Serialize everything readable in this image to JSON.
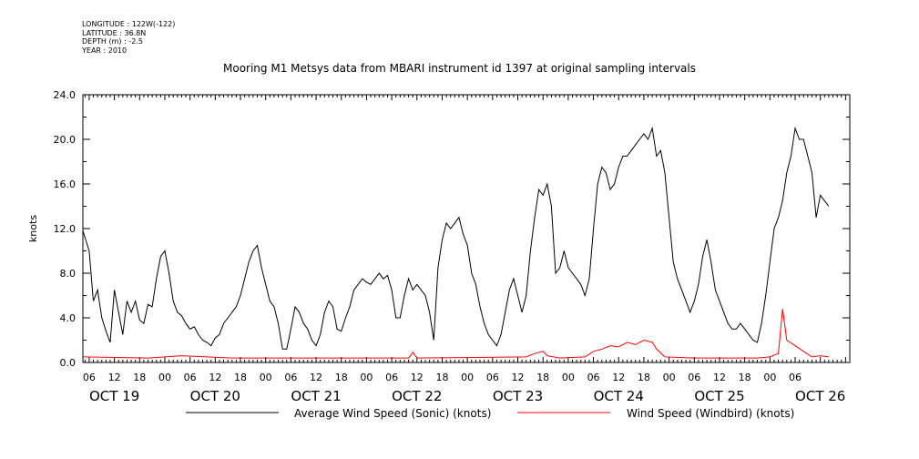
{
  "meta": {
    "longitude": "LONGITUDE : 122W(-122)",
    "latitude": "LATITUDE : 36.8N",
    "depth": "DEPTH (m) : -2.5",
    "year": "YEAR : 2010"
  },
  "chart_data": {
    "type": "line",
    "title": "Mooring M1 Metsys data from MBARI instrument id 1397 at original sampling intervals",
    "ylabel": "knots",
    "ylim": [
      0,
      24
    ],
    "xlim_hours": [
      4.5,
      187
    ],
    "y_ticks": [
      "0.0",
      "4.0",
      "8.0",
      "12.0",
      "16.0",
      "20.0",
      "24.0"
    ],
    "hour_ticks": [
      "06",
      "12",
      "18",
      "00",
      "06",
      "12",
      "18",
      "00",
      "06",
      "12",
      "18",
      "00",
      "06",
      "12",
      "18",
      "00",
      "06",
      "12",
      "18",
      "00",
      "06",
      "12",
      "18",
      "00",
      "06",
      "12",
      "18",
      "00",
      "06"
    ],
    "date_labels": [
      "OCT 19",
      "OCT 20",
      "OCT 21",
      "OCT 22",
      "OCT 23",
      "OCT 24",
      "OCT 25",
      "OCT 26"
    ],
    "grid": false,
    "legend_position": "bottom",
    "series": [
      {
        "name": "Average Wind Speed (Sonic) (knots)",
        "color": "#000000",
        "points": [
          [
            4.5,
            11.8
          ],
          [
            6,
            10.0
          ],
          [
            7,
            5.5
          ],
          [
            8,
            6.5
          ],
          [
            9,
            4.0
          ],
          [
            10,
            2.8
          ],
          [
            11,
            1.8
          ],
          [
            12,
            6.5
          ],
          [
            13,
            4.5
          ],
          [
            14,
            2.5
          ],
          [
            15,
            5.5
          ],
          [
            16,
            4.5
          ],
          [
            17,
            5.5
          ],
          [
            18,
            3.8
          ],
          [
            19,
            3.5
          ],
          [
            20,
            5.2
          ],
          [
            21,
            5.0
          ],
          [
            22,
            7.5
          ],
          [
            23,
            9.5
          ],
          [
            24,
            10.0
          ],
          [
            25,
            8.0
          ],
          [
            26,
            5.5
          ],
          [
            27,
            4.5
          ],
          [
            28,
            4.2
          ],
          [
            29,
            3.5
          ],
          [
            30,
            3.0
          ],
          [
            31,
            3.2
          ],
          [
            32,
            2.5
          ],
          [
            33,
            2.0
          ],
          [
            34,
            1.8
          ],
          [
            35,
            1.5
          ],
          [
            36,
            2.2
          ],
          [
            37,
            2.5
          ],
          [
            38,
            3.5
          ],
          [
            39,
            4.0
          ],
          [
            40,
            4.5
          ],
          [
            41,
            5.0
          ],
          [
            42,
            6.0
          ],
          [
            43,
            7.5
          ],
          [
            44,
            9.0
          ],
          [
            45,
            10.0
          ],
          [
            46,
            10.5
          ],
          [
            47,
            8.5
          ],
          [
            48,
            7.0
          ],
          [
            49,
            5.5
          ],
          [
            50,
            5.0
          ],
          [
            51,
            3.5
          ],
          [
            52,
            1.2
          ],
          [
            53,
            1.2
          ],
          [
            54,
            3.0
          ],
          [
            55,
            5.0
          ],
          [
            56,
            4.5
          ],
          [
            57,
            3.5
          ],
          [
            58,
            3.0
          ],
          [
            59,
            2.0
          ],
          [
            60,
            1.5
          ],
          [
            61,
            2.5
          ],
          [
            62,
            4.5
          ],
          [
            63,
            5.5
          ],
          [
            64,
            5.0
          ],
          [
            65,
            3.0
          ],
          [
            66,
            2.8
          ],
          [
            67,
            4.0
          ],
          [
            68,
            5.0
          ],
          [
            69,
            6.5
          ],
          [
            70,
            7.0
          ],
          [
            71,
            7.5
          ],
          [
            72,
            7.2
          ],
          [
            73,
            7.0
          ],
          [
            74,
            7.5
          ],
          [
            75,
            8.0
          ],
          [
            76,
            7.5
          ],
          [
            77,
            7.8
          ],
          [
            78,
            6.5
          ],
          [
            79,
            4.0
          ],
          [
            80,
            4.0
          ],
          [
            81,
            6.0
          ],
          [
            82,
            7.5
          ],
          [
            83,
            6.5
          ],
          [
            84,
            7.0
          ],
          [
            85,
            6.5
          ],
          [
            86,
            6.0
          ],
          [
            87,
            4.5
          ],
          [
            88,
            2.0
          ],
          [
            89,
            8.5
          ],
          [
            90,
            11.0
          ],
          [
            91,
            12.5
          ],
          [
            92,
            12.0
          ],
          [
            93,
            12.5
          ],
          [
            94,
            13.0
          ],
          [
            95,
            11.5
          ],
          [
            96,
            10.5
          ],
          [
            97,
            8.0
          ],
          [
            98,
            7.0
          ],
          [
            99,
            5.0
          ],
          [
            100,
            3.5
          ],
          [
            101,
            2.5
          ],
          [
            102,
            2.0
          ],
          [
            103,
            1.5
          ],
          [
            104,
            2.5
          ],
          [
            105,
            4.5
          ],
          [
            106,
            6.5
          ],
          [
            107,
            7.5
          ],
          [
            108,
            6.0
          ],
          [
            109,
            4.5
          ],
          [
            110,
            6.0
          ],
          [
            111,
            10.0
          ],
          [
            112,
            13.0
          ],
          [
            113,
            15.5
          ],
          [
            114,
            15.0
          ],
          [
            115,
            16.0
          ],
          [
            116,
            14.0
          ],
          [
            117,
            8.0
          ],
          [
            118,
            8.5
          ],
          [
            119,
            10.0
          ],
          [
            120,
            8.5
          ],
          [
            121,
            8.0
          ],
          [
            122,
            7.5
          ],
          [
            123,
            7.0
          ],
          [
            124,
            6.0
          ],
          [
            125,
            7.5
          ],
          [
            126,
            12.0
          ],
          [
            127,
            16.0
          ],
          [
            128,
            17.5
          ],
          [
            129,
            17.0
          ],
          [
            130,
            15.5
          ],
          [
            131,
            16.0
          ],
          [
            132,
            17.5
          ],
          [
            133,
            18.5
          ],
          [
            134,
            18.5
          ],
          [
            135,
            19.0
          ],
          [
            136,
            19.5
          ],
          [
            137,
            20.0
          ],
          [
            138,
            20.5
          ],
          [
            139,
            20.0
          ],
          [
            140,
            21.0
          ],
          [
            141,
            18.5
          ],
          [
            142,
            19.0
          ],
          [
            143,
            17.0
          ],
          [
            144,
            13.0
          ],
          [
            145,
            9.0
          ],
          [
            146,
            7.5
          ],
          [
            147,
            6.5
          ],
          [
            148,
            5.5
          ],
          [
            149,
            4.5
          ],
          [
            150,
            5.5
          ],
          [
            151,
            7.0
          ],
          [
            152,
            9.5
          ],
          [
            153,
            11.0
          ],
          [
            154,
            9.0
          ],
          [
            155,
            6.5
          ],
          [
            156,
            5.5
          ],
          [
            157,
            4.5
          ],
          [
            158,
            3.5
          ],
          [
            159,
            3.0
          ],
          [
            160,
            3.0
          ],
          [
            161,
            3.5
          ],
          [
            162,
            3.0
          ],
          [
            163,
            2.5
          ],
          [
            164,
            2.0
          ],
          [
            165,
            1.8
          ],
          [
            166,
            3.5
          ],
          [
            167,
            6.0
          ],
          [
            168,
            9.0
          ],
          [
            169,
            12.0
          ],
          [
            170,
            13.0
          ],
          [
            171,
            14.5
          ],
          [
            172,
            17.0
          ],
          [
            173,
            18.5
          ],
          [
            174,
            21.0
          ],
          [
            175,
            20.0
          ],
          [
            176,
            20.0
          ],
          [
            177,
            18.5
          ],
          [
            178,
            17.0
          ],
          [
            179,
            13.0
          ],
          [
            180,
            15.0
          ],
          [
            181,
            14.5
          ],
          [
            182,
            14.0
          ]
        ]
      },
      {
        "name": "Wind Speed (Windbird) (knots)",
        "color": "#ff0000",
        "points": [
          [
            4.5,
            0.5
          ],
          [
            20,
            0.4
          ],
          [
            28,
            0.6
          ],
          [
            40,
            0.4
          ],
          [
            50,
            0.4
          ],
          [
            68,
            0.4
          ],
          [
            82,
            0.4
          ],
          [
            83,
            0.9
          ],
          [
            84,
            0.4
          ],
          [
            110,
            0.5
          ],
          [
            112,
            0.8
          ],
          [
            114,
            1.0
          ],
          [
            115,
            0.6
          ],
          [
            118,
            0.4
          ],
          [
            124,
            0.5
          ],
          [
            126,
            1.0
          ],
          [
            128,
            1.2
          ],
          [
            130,
            1.5
          ],
          [
            132,
            1.4
          ],
          [
            134,
            1.8
          ],
          [
            136,
            1.6
          ],
          [
            138,
            2.0
          ],
          [
            140,
            1.8
          ],
          [
            141,
            1.2
          ],
          [
            143,
            0.5
          ],
          [
            150,
            0.4
          ],
          [
            160,
            0.4
          ],
          [
            165,
            0.4
          ],
          [
            168,
            0.5
          ],
          [
            170,
            0.8
          ],
          [
            171,
            4.8
          ],
          [
            172,
            2.0
          ],
          [
            174,
            1.5
          ],
          [
            176,
            1.0
          ],
          [
            178,
            0.5
          ],
          [
            180,
            0.6
          ],
          [
            182,
            0.5
          ]
        ]
      }
    ]
  }
}
